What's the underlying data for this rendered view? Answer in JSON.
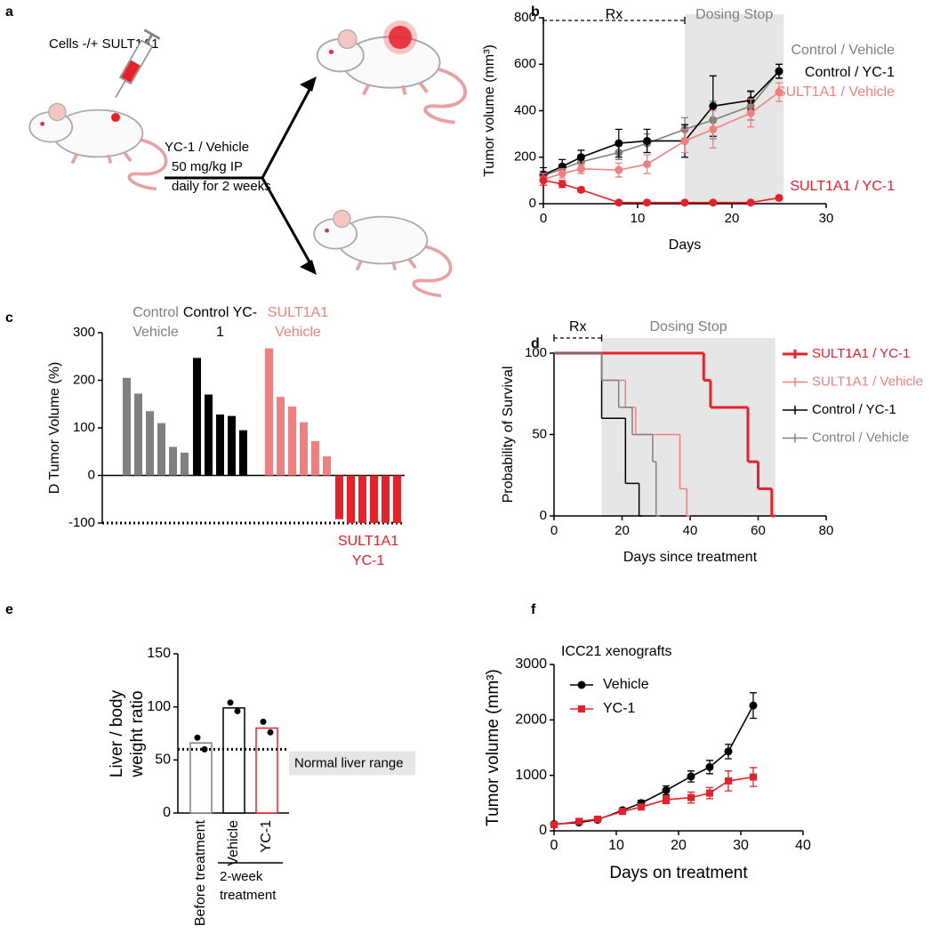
{
  "schematic": {
    "panel": "a",
    "cells": "Cells -/+ SULT1A1",
    "treatment": "YC-1 / Vehicle",
    "dose": "50 mg/kg IP",
    "schedule": "daily for 2 weeks"
  },
  "chart_data": [
    {
      "panel": "b",
      "type": "line",
      "x_label": "Days",
      "y_label": "Tumor volume (mm³)",
      "x": [
        0,
        2,
        4,
        8,
        11,
        15,
        18,
        22,
        25
      ],
      "xlim": [
        0,
        30
      ],
      "xticks": [
        0,
        10,
        20,
        30
      ],
      "ylim": [
        0,
        800
      ],
      "yticks": [
        0,
        200,
        400,
        600,
        800
      ],
      "rx_label": "Rx",
      "rx_span": [
        0,
        15
      ],
      "shade_label": "Dosing Stop",
      "shade_span": [
        15,
        25.5
      ],
      "series": [
        {
          "name": "Control / Vehicle",
          "color": "#808080",
          "marker": "circle",
          "values": [
            120,
            150,
            180,
            220,
            260,
            320,
            360,
            420,
            570
          ],
          "errors": [
            20,
            20,
            30,
            30,
            40,
            50,
            80,
            60,
            30
          ]
        },
        {
          "name": "Control / YC-1",
          "color": "#000000",
          "marker": "circle",
          "values": [
            125,
            160,
            200,
            260,
            270,
            270,
            420,
            445,
            570
          ],
          "errors": [
            30,
            30,
            30,
            60,
            50,
            70,
            130,
            40,
            30
          ]
        },
        {
          "name": "SULT1A1 / Vehicle",
          "color": "#f08080",
          "marker": "circle",
          "values": [
            105,
            130,
            150,
            145,
            170,
            270,
            320,
            390,
            480
          ],
          "errors": [
            25,
            20,
            20,
            30,
            40,
            50,
            80,
            60,
            40
          ]
        },
        {
          "name": "SULT1A1 / YC-1",
          "color": "#e8202a",
          "marker": "circle",
          "values": [
            100,
            85,
            60,
            5,
            5,
            5,
            5,
            5,
            25
          ],
          "errors": [
            20,
            15,
            10,
            3,
            3,
            3,
            3,
            3,
            5
          ]
        }
      ]
    },
    {
      "panel": "c",
      "type": "waterfall",
      "y_label": "D Tumor Volume (%)",
      "ylim": [
        -100,
        300
      ],
      "yticks": [
        -100,
        0,
        100,
        200,
        300
      ],
      "ref_line": -100,
      "series": [
        {
          "name": "Control Vehicle",
          "color": "#808080",
          "values": [
            205,
            172,
            135,
            110,
            60,
            48
          ]
        },
        {
          "name": "Control YC-1",
          "color": "#000000",
          "values": [
            247,
            170,
            128,
            125,
            95
          ]
        },
        {
          "name": "SULT1A1 Vehicle",
          "color": "#f08080",
          "values": [
            267,
            165,
            145,
            112,
            72,
            40
          ]
        },
        {
          "name": "SULT1A1 YC-1",
          "color": "#e8202a",
          "values": [
            -92,
            -100,
            -100,
            -100,
            -100,
            -100
          ]
        }
      ]
    },
    {
      "panel": "d",
      "type": "survival",
      "x_label": "Days since treatment",
      "y_label": "Probability of Survival",
      "xlim": [
        0,
        80
      ],
      "xticks": [
        0,
        20,
        40,
        60,
        80
      ],
      "ylim": [
        0,
        100
      ],
      "yticks": [
        0,
        50,
        100
      ],
      "rx_label": "Rx",
      "rx_span": [
        0,
        14
      ],
      "shade_label": "Dosing Stop",
      "shade_span": [
        14,
        65
      ],
      "series": [
        {
          "name": "SULT1A1 / YC-1",
          "color": "#e8202a",
          "x": [
            0,
            44,
            46,
            57,
            60,
            64
          ],
          "values": [
            100,
            83.3,
            66.7,
            33.3,
            16.7,
            0
          ]
        },
        {
          "name": "SULT1A1 / Vehicle",
          "color": "#f08080",
          "x": [
            0,
            14,
            21,
            24,
            37,
            39
          ],
          "values": [
            100,
            83.3,
            66.7,
            50,
            16.7,
            0
          ]
        },
        {
          "name": "Control / YC-1",
          "color": "#000000",
          "x": [
            0,
            14,
            21,
            25
          ],
          "values": [
            100,
            60,
            20,
            0
          ]
        },
        {
          "name": "Control / Vehicle",
          "color": "#808080",
          "x": [
            0,
            14,
            19,
            23,
            29,
            30
          ],
          "values": [
            100,
            83.3,
            66.7,
            50,
            33.3,
            0
          ]
        }
      ]
    },
    {
      "panel": "e",
      "type": "bar",
      "y_label": "Liver / body weight ratio",
      "categories": [
        "Before treatment",
        "Vehicle",
        "YC-1"
      ],
      "values": [
        66,
        99,
        80
      ],
      "colors": [
        "#808080",
        "#000000",
        "#e8202a"
      ],
      "points": [
        [
          71,
          60
        ],
        [
          104,
          96
        ],
        [
          86,
          76
        ]
      ],
      "ylim": [
        0,
        150
      ],
      "yticks": [
        0,
        50,
        100,
        150
      ],
      "ref_line": 60,
      "ref_label": "Normal liver range",
      "group_label": "2-week treatment"
    },
    {
      "panel": "f",
      "type": "line",
      "title": "ICC21 xenografts",
      "x_label": "Days on treatment",
      "y_label": "Tumor volume (mm³)",
      "x": [
        0,
        4,
        7,
        11,
        14,
        18,
        22,
        25,
        28,
        32
      ],
      "xlim": [
        0,
        40
      ],
      "xticks": [
        0,
        10,
        20,
        30,
        40
      ],
      "ylim": [
        0,
        3000
      ],
      "yticks": [
        0,
        1000,
        2000,
        3000
      ],
      "legend": "upper left",
      "series": [
        {
          "name": "Vehicle",
          "color": "#000000",
          "marker": "circle",
          "values": [
            120,
            150,
            200,
            370,
            500,
            730,
            980,
            1150,
            1430,
            2260
          ],
          "errors": [
            20,
            20,
            30,
            40,
            50,
            80,
            100,
            120,
            130,
            230
          ]
        },
        {
          "name": "YC-1",
          "color": "#e8202a",
          "marker": "square",
          "values": [
            110,
            170,
            210,
            350,
            430,
            560,
            600,
            680,
            900,
            970
          ],
          "errors": [
            20,
            30,
            30,
            40,
            50,
            70,
            100,
            100,
            180,
            170
          ]
        }
      ]
    }
  ]
}
